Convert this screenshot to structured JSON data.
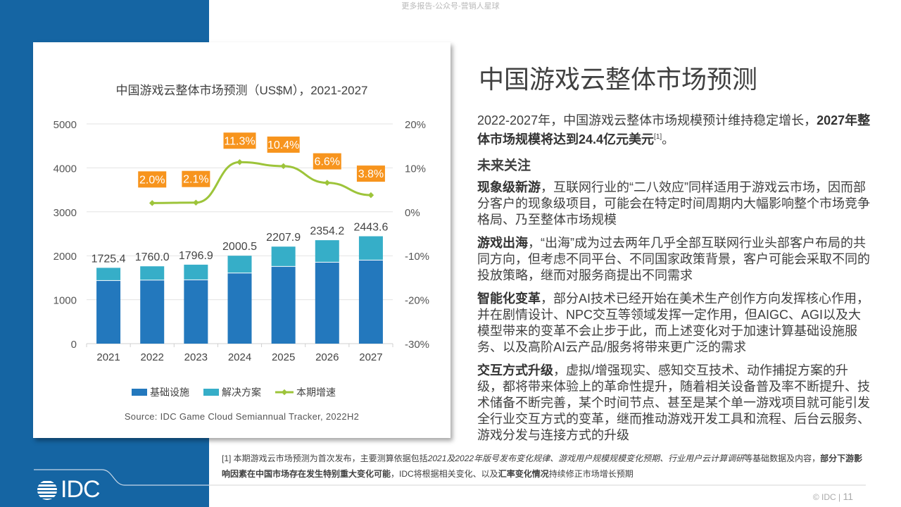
{
  "watermark": "更多报告-公众号-营销人星球",
  "headline": "中国游戏云整体市场预测",
  "intro": {
    "text": "2022-2027年，中国游戏云整体市场规模预计维持稳定增长，",
    "bold": "2027年整体市场规模将达到24.4亿元美元",
    "sup": "[1]",
    "end": "。"
  },
  "section_title": "未来关注",
  "points": [
    {
      "bold": "现象级新游",
      "text": "，互联网行业的“二八效应”同样适用于游戏云市场，因而部分客户的现象级项目，可能会在特定时间周期内大幅影响整个市场竞争格局、乃至整体市场规模"
    },
    {
      "bold": "游戏出海",
      "text": "，“出海”成为过去两年几乎全部互联网行业头部客户布局的共同方向，但考虑不同平台、不同国家政策背景，客户可能会采取不同的投放策略，继而对服务商提出不同需求"
    },
    {
      "bold": "智能化变革",
      "text": "，部分AI技术已经开始在美术生产创作方向发挥核心作用，并在剧情设计、NPC交互等领域发挥一定作用，但AIGC、AGI以及大模型带来的变革不会止步于此，而上述变化对于加速计算基础设施服务、以及高阶AI云产品/服务将带来更广泛的需求"
    },
    {
      "bold": "交互方式升级",
      "text": "，虚拟/增强现实、感知交互技术、动作捕捉方案的升级，都将带来体验上的革命性提升，随着相关设备普及率不断提升、技术储备不断完善，某个时间节点、甚至是某个单一游戏项目就可能引发全行业交互方式的变革，继而推动游戏开发工具和流程、后台云服务、游戏分发与连接方式的升级"
    }
  ],
  "footnote": {
    "p1": "[1] 本期游戏云市场预测为首次发布，主要测算依据包括",
    "i1": "2021及2022年版号发布变化规律、游戏用户规模规模变化预期、行业用户云计算调研",
    "p2": "等基础数据及内容，",
    "b1": "部分下游影响因素在中国市场存在发生特别重大变化可能",
    "p3": "，IDC将根据相关变化、以及",
    "b2": "汇率变化情况",
    "p4": "持续修正市场增长预期"
  },
  "page": {
    "copyright": "© IDC |",
    "number": "11"
  },
  "logo": "IDC",
  "source": "Source: IDC Game Cloud Semiannual Tracker, 2022H2",
  "colors": {
    "base": "#2378bd",
    "solution": "#36aec8",
    "growth": "#9dc43a",
    "label_bg": "#f7941d",
    "panel": "#1565a3"
  },
  "chart_data": {
    "type": "bar",
    "title": "中国游戏云整体市场预测（US$M），2021-2027",
    "categories": [
      "2021",
      "2022",
      "2023",
      "2024",
      "2025",
      "2026",
      "2027"
    ],
    "series": [
      {
        "name": "基础设施",
        "values": [
          1428,
          1438,
          1444,
          1599,
          1749,
          1845,
          1893
        ]
      },
      {
        "name": "解决方案",
        "values": [
          297.4,
          322.0,
          352.9,
          401.5,
          458.9,
          509.2,
          550.6
        ]
      },
      {
        "name": "本期增速",
        "type": "line",
        "axis": "right",
        "values": [
          null,
          2.0,
          2.1,
          11.3,
          10.4,
          6.6,
          3.8
        ]
      }
    ],
    "totals": [
      "1725.4",
      "1760.0",
      "1796.9",
      "2000.5",
      "2207.9",
      "2354.2",
      "2443.6"
    ],
    "growth_labels": [
      "2.0%",
      "2.1%",
      "11.3%",
      "10.4%",
      "6.6%",
      "3.8%"
    ],
    "ylim": [
      0,
      5000
    ],
    "yticks": [
      "0",
      "1000",
      "2000",
      "3000",
      "4000",
      "5000"
    ],
    "y2lim": [
      -30,
      20
    ],
    "y2ticks": [
      "-30%",
      "-20%",
      "-10%",
      "0%",
      "10%",
      "20%"
    ],
    "grid": true,
    "legend": "bottom"
  }
}
